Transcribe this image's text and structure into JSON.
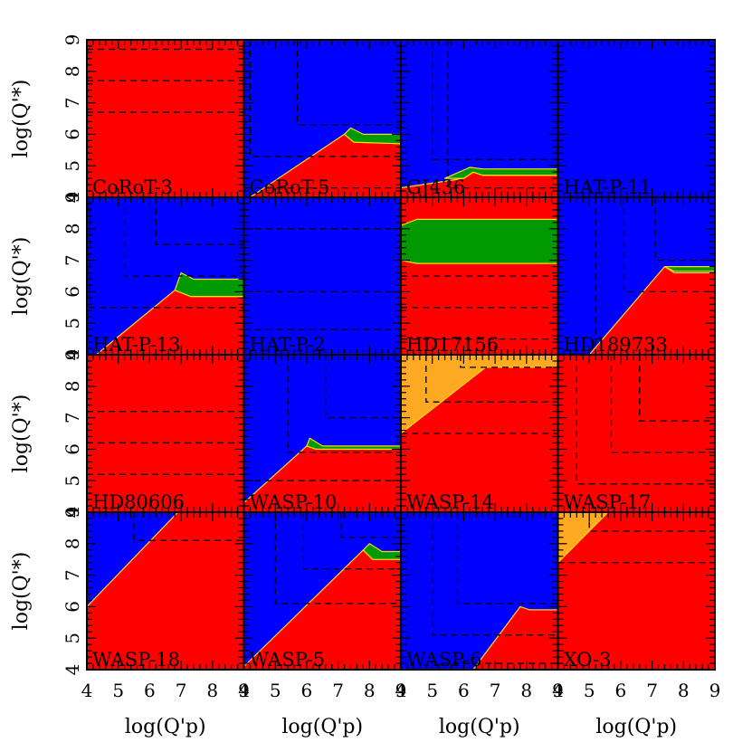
{
  "chart_data": {
    "type": "heatmap",
    "rows": 4,
    "cols": 4,
    "xlabel": "log(Q'p)",
    "ylabel": "log(Q'*)",
    "xlim": [
      4,
      9
    ],
    "ylim": [
      4,
      9
    ],
    "xticks": [
      4,
      5,
      6,
      7,
      8,
      9
    ],
    "yticks": [
      4,
      5,
      6,
      7,
      8,
      9
    ],
    "colors": {
      "red": "#ff0000",
      "blue": "#0000ff",
      "green": "#009900",
      "orange": "#ffaa22",
      "edge": "#ffdd00"
    },
    "panels": [
      {
        "name": "CoRoT-3",
        "base": "red",
        "regions": [],
        "dashed_h": [
          8.7,
          7.7,
          6.7
        ],
        "dashed_polylines": []
      },
      {
        "name": "CoRoT-5",
        "base": "blue",
        "regions": [
          {
            "color": "red",
            "points": [
              [
                4.2,
                4
              ],
              [
                7.2,
                6.0
              ],
              [
                7.5,
                5.75
              ],
              [
                9,
                5.7
              ],
              [
                9,
                4
              ]
            ]
          },
          {
            "color": "green",
            "points": [
              [
                7.2,
                6.0
              ],
              [
                7.4,
                6.2
              ],
              [
                7.8,
                6.0
              ],
              [
                9,
                6.0
              ],
              [
                9,
                5.7
              ],
              [
                7.5,
                5.75
              ]
            ]
          }
        ],
        "dashed_h": [],
        "dashed_polylines": [
          [
            [
              5.7,
              9
            ],
            [
              5.7,
              6.3
            ],
            [
              9,
              6.3
            ]
          ],
          [
            [
              4.2,
              9
            ],
            [
              4.2,
              5.3
            ],
            [
              9,
              5.3
            ]
          ],
          [
            [
              4,
              4.3
            ],
            [
              9,
              4.3
            ]
          ]
        ]
      },
      {
        "name": "GJ436",
        "base": "blue",
        "regions": [
          {
            "color": "red",
            "points": [
              [
                4,
                4
              ],
              [
                4,
                4.3
              ],
              [
                6,
                4.6
              ],
              [
                6.3,
                4.8
              ],
              [
                6.6,
                4.7
              ],
              [
                9,
                4.7
              ],
              [
                9,
                4
              ]
            ]
          },
          {
            "color": "green",
            "points": [
              [
                5.4,
                4.6
              ],
              [
                6.2,
                4.95
              ],
              [
                6.6,
                4.9
              ],
              [
                9,
                4.9
              ],
              [
                9,
                4.7
              ],
              [
                6.6,
                4.7
              ],
              [
                6.3,
                4.8
              ],
              [
                6,
                4.6
              ]
            ]
          }
        ],
        "dashed_h": [],
        "dashed_polylines": [
          [
            [
              5,
              9
            ],
            [
              5,
              5.2
            ],
            [
              9,
              5.2
            ]
          ],
          [
            [
              5.5,
              9
            ],
            [
              5.5,
              4.3
            ],
            [
              9,
              4.3
            ]
          ]
        ]
      },
      {
        "name": "HAT-P-11",
        "base": "blue",
        "regions": [],
        "dashed_h": [],
        "dashed_polylines": []
      },
      {
        "name": "HAT-P-13",
        "base": "blue",
        "regions": [
          {
            "color": "red",
            "points": [
              [
                4.3,
                4
              ],
              [
                6.8,
                6.05
              ],
              [
                7.3,
                5.85
              ],
              [
                9,
                5.85
              ],
              [
                9,
                4
              ]
            ]
          },
          {
            "color": "green",
            "points": [
              [
                6.8,
                6.05
              ],
              [
                7.0,
                6.6
              ],
              [
                7.4,
                6.4
              ],
              [
                9,
                6.4
              ],
              [
                9,
                5.85
              ],
              [
                7.3,
                5.85
              ]
            ]
          }
        ],
        "dashed_h": [],
        "dashed_polylines": [
          [
            [
              5.2,
              9
            ],
            [
              5.2,
              6.5
            ],
            [
              9,
              6.5
            ]
          ],
          [
            [
              6.2,
              9
            ],
            [
              6.2,
              7.5
            ],
            [
              9,
              7.5
            ]
          ],
          [
            [
              4.1,
              9
            ],
            [
              4.1,
              5.5
            ],
            [
              9,
              5.5
            ]
          ]
        ]
      },
      {
        "name": "HAT-P-2",
        "base": "blue",
        "regions": [],
        "dashed_h": [
          8.0,
          6.0,
          4.8
        ],
        "dashed_polylines": []
      },
      {
        "name": "HD17156",
        "base": "red",
        "regions": [
          {
            "color": "green",
            "points": [
              [
                4,
                7.0
              ],
              [
                4,
                8.1
              ],
              [
                4.5,
                8.3
              ],
              [
                9,
                8.3
              ],
              [
                9,
                6.9
              ],
              [
                4.5,
                6.9
              ]
            ]
          }
        ],
        "dashed_h": [
          6.5,
          5.5,
          4.5
        ],
        "dashed_polylines": []
      },
      {
        "name": "HD189733",
        "base": "blue",
        "regions": [
          {
            "color": "red",
            "points": [
              [
                5,
                4
              ],
              [
                7.4,
                6.8
              ],
              [
                7.7,
                6.6
              ],
              [
                9,
                6.6
              ],
              [
                9,
                4
              ]
            ]
          },
          {
            "color": "green",
            "points": [
              [
                7.4,
                6.8
              ],
              [
                7.6,
                6.8
              ],
              [
                9,
                6.8
              ],
              [
                9,
                6.65
              ],
              [
                7.7,
                6.65
              ]
            ]
          }
        ],
        "dashed_h": [],
        "dashed_polylines": [
          [
            [
              5.2,
              9
            ],
            [
              5.2,
              4
            ],
            [
              9,
              4
            ]
          ],
          [
            [
              6.1,
              9
            ],
            [
              6.1,
              6
            ],
            [
              9,
              6
            ]
          ],
          [
            [
              7.1,
              9
            ],
            [
              7.1,
              7
            ],
            [
              9,
              7
            ]
          ]
        ]
      },
      {
        "name": "HD80606",
        "base": "red",
        "regions": [],
        "dashed_h": [
          7.2,
          6.2,
          5.2
        ],
        "dashed_polylines": []
      },
      {
        "name": "WASP-10",
        "base": "blue",
        "regions": [
          {
            "color": "red",
            "points": [
              [
                4,
                4.3
              ],
              [
                6,
                6.1
              ],
              [
                6.3,
                6.0
              ],
              [
                9,
                6.0
              ],
              [
                9,
                4
              ],
              [
                4,
                4
              ]
            ]
          },
          {
            "color": "green",
            "points": [
              [
                6,
                6.1
              ],
              [
                6.1,
                6.35
              ],
              [
                6.5,
                6.1
              ],
              [
                9,
                6.1
              ],
              [
                9,
                6.0
              ],
              [
                6.3,
                6.0
              ]
            ]
          }
        ],
        "dashed_h": [],
        "dashed_polylines": [
          [
            [
              5.4,
              9
            ],
            [
              5.4,
              5.9
            ],
            [
              9,
              5.9
            ]
          ],
          [
            [
              6.6,
              9
            ],
            [
              6.6,
              7
            ],
            [
              9,
              7
            ]
          ],
          [
            [
              4,
              5
            ],
            [
              9,
              5
            ]
          ]
        ]
      },
      {
        "name": "WASP-14",
        "base": "red",
        "regions": [
          {
            "color": "orange",
            "points": [
              [
                4,
                6.5
              ],
              [
                4,
                9
              ],
              [
                9,
                9
              ],
              [
                9,
                8.6
              ],
              [
                6.7,
                8.6
              ]
            ]
          }
        ],
        "dashed_h": [
          6.5
        ],
        "dashed_polylines": [
          [
            [
              4.8,
              9
            ],
            [
              4.8,
              7.5
            ],
            [
              9,
              7.5
            ]
          ],
          [
            [
              5.9,
              9
            ],
            [
              5.9,
              8.6
            ],
            [
              9,
              8.6
            ]
          ]
        ]
      },
      {
        "name": "WASP-17",
        "base": "red",
        "regions": [],
        "dashed_h": [],
        "dashed_polylines": [
          [
            [
              4.6,
              9
            ],
            [
              4.6,
              4.9
            ],
            [
              9,
              4.9
            ]
          ],
          [
            [
              5.7,
              9
            ],
            [
              5.7,
              5.9
            ],
            [
              9,
              5.9
            ]
          ],
          [
            [
              6.6,
              9
            ],
            [
              6.6,
              6.9
            ],
            [
              9,
              6.9
            ]
          ]
        ]
      },
      {
        "name": "WASP-18",
        "base": "red",
        "regions": [
          {
            "color": "blue",
            "points": [
              [
                4,
                6.0
              ],
              [
                4,
                9
              ],
              [
                6.9,
                9
              ]
            ]
          }
        ],
        "dashed_h": [],
        "dashed_polylines": [
          [
            [
              5.5,
              9
            ],
            [
              5.5,
              8.1
            ],
            [
              9,
              8.1
            ]
          ]
        ]
      },
      {
        "name": "WASP-5",
        "base": "blue",
        "regions": [
          {
            "color": "red",
            "points": [
              [
                4,
                4
              ],
              [
                4,
                4.1
              ],
              [
                7.8,
                7.8
              ],
              [
                8.1,
                7.5
              ],
              [
                9,
                7.5
              ],
              [
                9,
                4
              ]
            ]
          },
          {
            "color": "green",
            "points": [
              [
                7.8,
                7.8
              ],
              [
                8.0,
                8.0
              ],
              [
                8.4,
                7.75
              ],
              [
                9,
                7.75
              ],
              [
                9,
                7.5
              ],
              [
                8.1,
                7.5
              ]
            ]
          }
        ],
        "dashed_h": [],
        "dashed_polylines": [
          [
            [
              5,
              9
            ],
            [
              5,
              6.1
            ],
            [
              9,
              6.1
            ]
          ],
          [
            [
              5.9,
              9
            ],
            [
              5.9,
              7.2
            ],
            [
              9,
              7.2
            ]
          ],
          [
            [
              7.1,
              9
            ],
            [
              7.1,
              8.2
            ],
            [
              9,
              8.2
            ]
          ]
        ]
      },
      {
        "name": "WASP-6",
        "base": "blue",
        "regions": [
          {
            "color": "red",
            "points": [
              [
                6.3,
                4
              ],
              [
                7.8,
                6.0
              ],
              [
                8.1,
                5.9
              ],
              [
                9,
                5.9
              ],
              [
                9,
                4
              ]
            ]
          }
        ],
        "dashed_h": [],
        "dashed_polylines": [
          [
            [
              5.8,
              9
            ],
            [
              5.8,
              6.1
            ],
            [
              9,
              6.1
            ]
          ],
          [
            [
              5,
              9
            ],
            [
              5,
              5.1
            ],
            [
              9,
              5.1
            ]
          ],
          [
            [
              5.3,
              4.2
            ],
            [
              9,
              4.2
            ]
          ]
        ]
      },
      {
        "name": "XO-3",
        "base": "red",
        "regions": [
          {
            "color": "orange",
            "points": [
              [
                4,
                7.4
              ],
              [
                4,
                9
              ],
              [
                5.6,
                9
              ]
            ]
          }
        ],
        "dashed_h": [
          7.4
        ],
        "dashed_polylines": [
          [
            [
              5,
              8.7
            ],
            [
              5,
              8.4
            ],
            [
              9,
              8.4
            ]
          ]
        ]
      }
    ]
  }
}
